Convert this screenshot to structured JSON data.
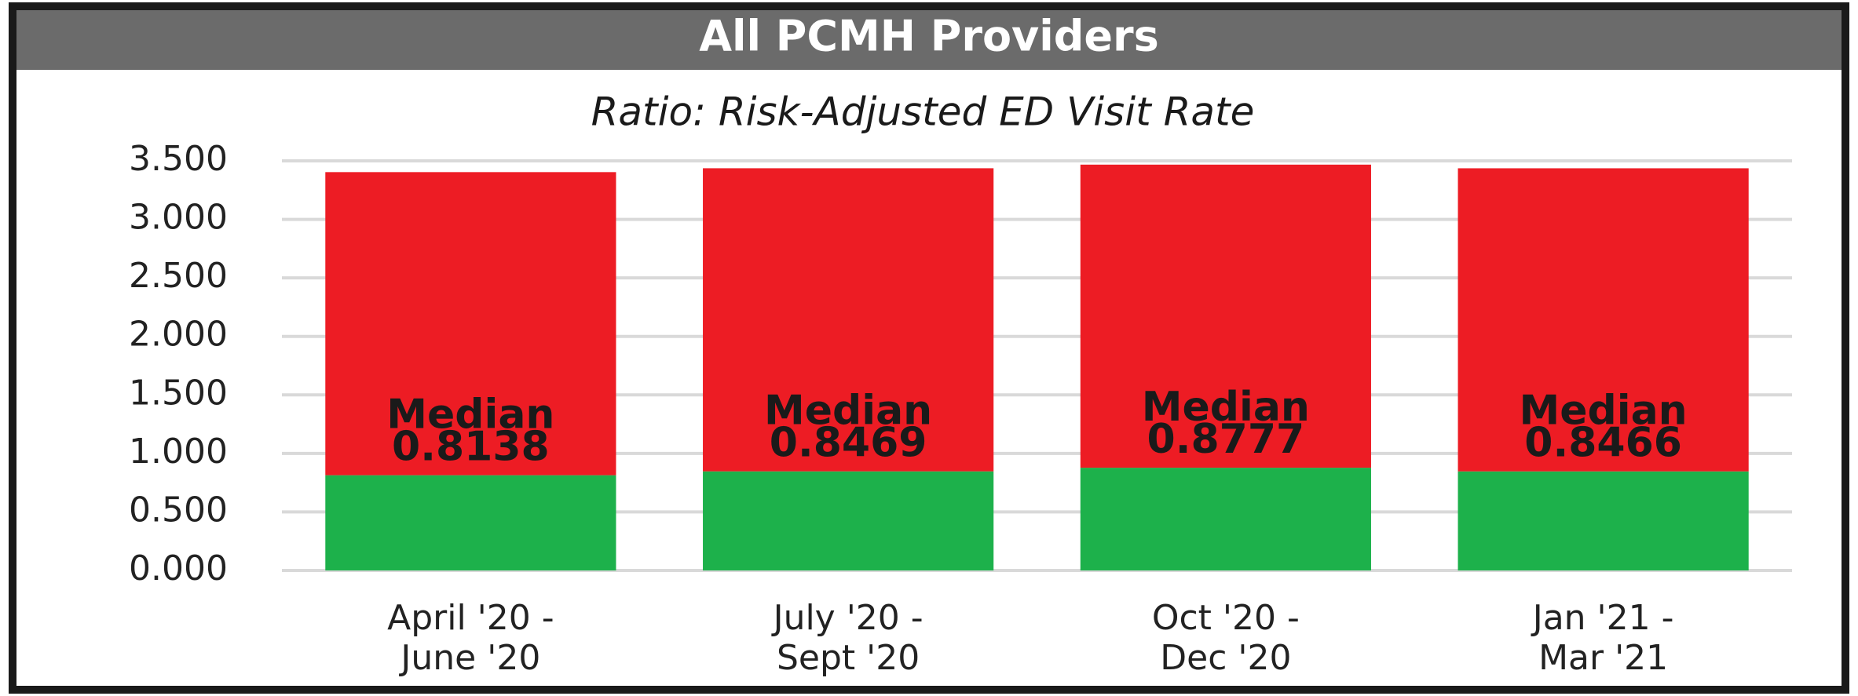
{
  "header": {
    "title": "All PCMH Providers"
  },
  "chart_data": {
    "type": "stacked_bar",
    "title": "Ratio: Risk-Adjusted ED Visit Rate",
    "categories": [
      [
        "April '20 -",
        "June '20"
      ],
      [
        "July '20 -",
        "Sept '20"
      ],
      [
        "Oct '20 -",
        "Dec '20"
      ],
      [
        "Jan '21 -",
        "Mar '21"
      ]
    ],
    "series": [
      {
        "name": "Median",
        "color": "#1db14b",
        "values": [
          0.8138,
          0.8469,
          0.8777,
          0.8466
        ]
      },
      {
        "color": "#ed1c24",
        "values": [
          2.59,
          2.59,
          2.59,
          2.59
        ]
      }
    ],
    "ylim": [
      0,
      3.5
    ],
    "yticks": [
      {
        "value": 0,
        "label": "0.000"
      },
      {
        "value": 0.5,
        "label": "0.500"
      },
      {
        "value": 1,
        "label": "1.000"
      },
      {
        "value": 1.5,
        "label": "1.500"
      },
      {
        "value": 2,
        "label": "2.000"
      },
      {
        "value": 2.5,
        "label": "2.500"
      },
      {
        "value": 3,
        "label": "3.000"
      },
      {
        "value": 3.5,
        "label": "3.500"
      }
    ],
    "grid": true
  }
}
